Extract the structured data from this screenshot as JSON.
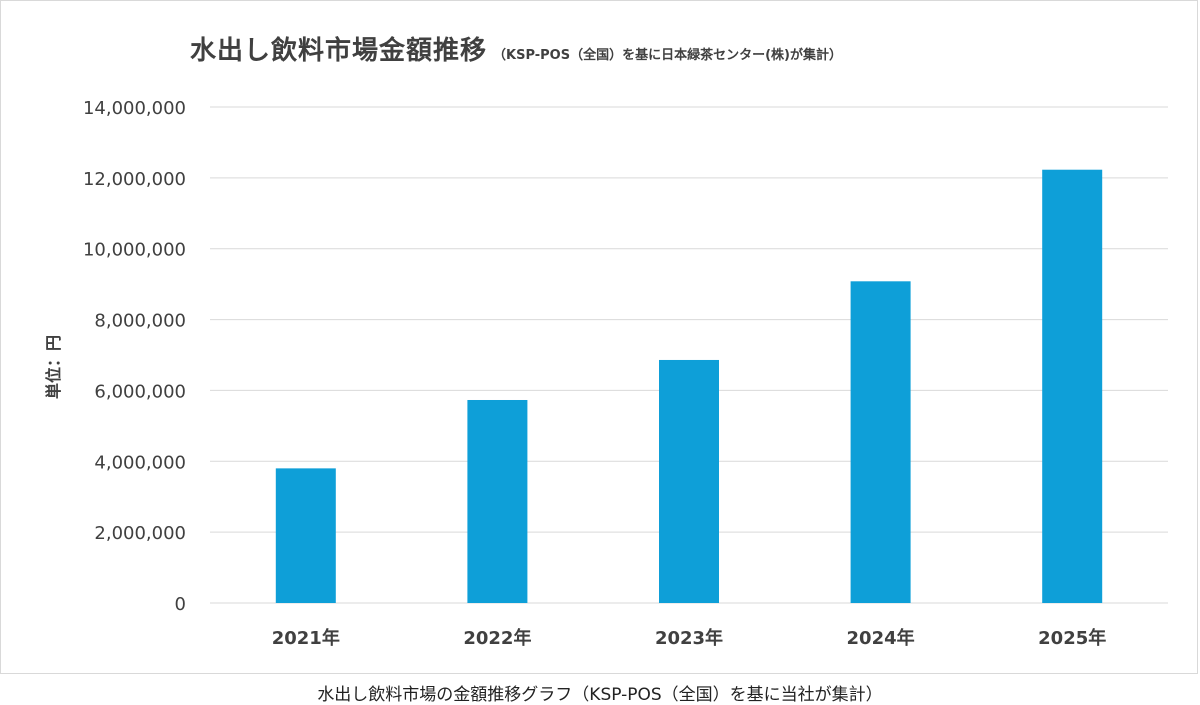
{
  "chart_data": {
    "type": "bar",
    "title": "水出し飲料市場金額推移",
    "subtitle": "（KSP-POS（全国）を基に日本緑茶センター(株)が集計）",
    "ylabel": "単位：円",
    "xlabel": "",
    "categories": [
      "2021年",
      "2022年",
      "2023年",
      "2024年",
      "2025年"
    ],
    "values": [
      3800000,
      5730000,
      6860000,
      9080000,
      12230000
    ],
    "ylim": [
      0,
      14000000
    ],
    "yticks": [
      0,
      2000000,
      4000000,
      6000000,
      8000000,
      10000000,
      12000000,
      14000000
    ],
    "ytick_labels": [
      "0",
      "2,000,000",
      "4,000,000",
      "6,000,000",
      "8,000,000",
      "10,000,000",
      "12,000,000",
      "14,000,000"
    ],
    "grid": true,
    "bar_color": "#0e9fd8",
    "grid_color": "#d9d9d9"
  },
  "caption": "水出し飲料市場の金額推移グラフ（KSP-POS（全国）を基に当社が集計）"
}
